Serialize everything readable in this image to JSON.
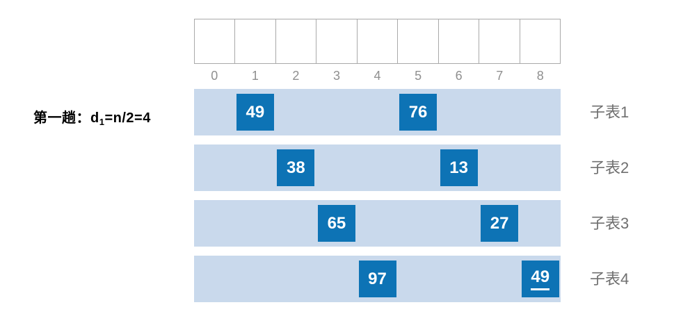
{
  "pass_label": {
    "prefix": "第一趟：d",
    "sub": "1",
    "suffix": "=n/2=4"
  },
  "array": {
    "indices": [
      "0",
      "1",
      "2",
      "3",
      "4",
      "5",
      "6",
      "7",
      "8"
    ]
  },
  "sublists": [
    {
      "label": "子表1",
      "items": [
        {
          "value": "49",
          "index": 1,
          "underline": false
        },
        {
          "value": "76",
          "index": 5,
          "underline": false
        }
      ]
    },
    {
      "label": "子表2",
      "items": [
        {
          "value": "38",
          "index": 2,
          "underline": false
        },
        {
          "value": "13",
          "index": 6,
          "underline": false
        }
      ]
    },
    {
      "label": "子表3",
      "items": [
        {
          "value": "65",
          "index": 3,
          "underline": false
        },
        {
          "value": "27",
          "index": 7,
          "underline": false
        }
      ]
    },
    {
      "label": "子表4",
      "items": [
        {
          "value": "97",
          "index": 4,
          "underline": false
        },
        {
          "value": "49",
          "index": 8,
          "underline": true
        }
      ]
    }
  ],
  "colors": {
    "background": "#ffffff",
    "bar_bg": "#c9d9ec",
    "box_bg": "#0d73b5",
    "box_text": "#ffffff",
    "cell_border": "#a9a9a9",
    "index_text": "#8f8f8f",
    "sublist_label": "#6f6f6f",
    "pass_label": "#000000"
  }
}
